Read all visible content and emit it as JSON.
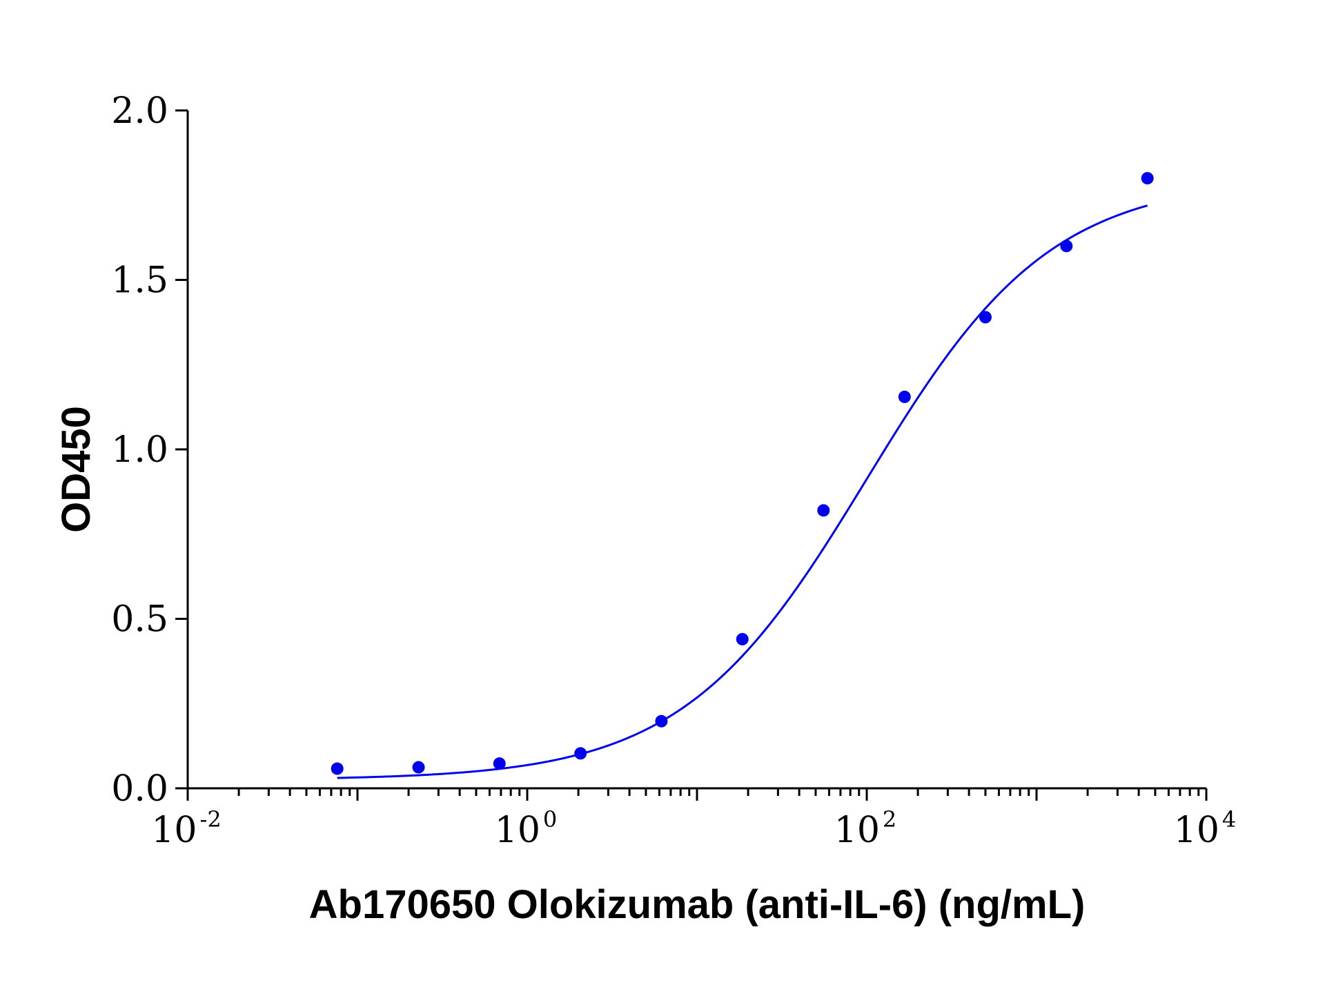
{
  "chart_data": {
    "type": "scatter",
    "title": "",
    "xlabel": "Ab170650 Olokizumab (anti-IL-6) (ng/mL)",
    "ylabel": "OD450",
    "x_scale": "log",
    "xlim": [
      0.01,
      10000
    ],
    "ylim": [
      0.0,
      2.0
    ],
    "grid": false,
    "color": "#0000ee",
    "x_ticks": [
      {
        "base": "10",
        "exp": "-2"
      },
      {
        "base": "10",
        "exp": "0"
      },
      {
        "base": "10",
        "exp": "2"
      },
      {
        "base": "10",
        "exp": "4"
      }
    ],
    "y_ticks": [
      "0.0",
      "0.5",
      "1.0",
      "1.5",
      "2.0"
    ],
    "series": [
      {
        "x": [
          0.076,
          0.229,
          0.686,
          2.06,
          6.17,
          18.5,
          55.6,
          167,
          500,
          1500,
          4500
        ],
        "values": [
          0.058,
          0.062,
          0.073,
          0.103,
          0.198,
          0.44,
          0.82,
          1.155,
          1.39,
          1.6,
          1.8
        ]
      }
    ],
    "fit_curve": {
      "type": "4PL",
      "bottom": 0.025,
      "top": 1.8,
      "ec50": 100,
      "hill": 0.8,
      "x_range": [
        0.076,
        4500
      ]
    }
  }
}
